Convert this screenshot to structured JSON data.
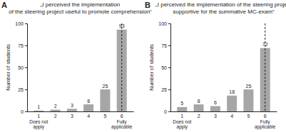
{
  "chart_data": [
    {
      "type": "bar",
      "panel": "A",
      "title": "„I perceived the implementation\nof the steering project useful to promote comprehension“",
      "y_label": "Number of students",
      "categories": [
        1,
        2,
        3,
        4,
        5,
        6
      ],
      "values": [
        1,
        2,
        3,
        8,
        25,
        93
      ],
      "color": "#a6a6a6",
      "ylim": [
        0,
        100
      ],
      "yticks": [
        0,
        25,
        50,
        75,
        100
      ],
      "data_labels": true,
      "median": 6,
      "annotations": [
        {
          "text": "Does not\napply",
          "x": 1
        },
        {
          "text": "Fully\napplicable",
          "x": 6
        }
      ]
    },
    {
      "type": "bar",
      "panel": "B",
      "title": "„I perceived the implementation of the steering project\nsupportive for the summative MC-exam“",
      "y_label": "Number of students",
      "categories": [
        1,
        2,
        3,
        4,
        5,
        6
      ],
      "values": [
        5,
        8,
        6,
        18,
        25,
        72
      ],
      "color": "#a6a6a6",
      "ylim": [
        0,
        100
      ],
      "yticks": [
        0,
        25,
        50,
        75,
        100
      ],
      "data_labels": true,
      "median": 6,
      "annotations": [
        {
          "text": "Does not\napply",
          "x": 1
        },
        {
          "text": "Fully\napplicable",
          "x": 6
        }
      ]
    }
  ]
}
